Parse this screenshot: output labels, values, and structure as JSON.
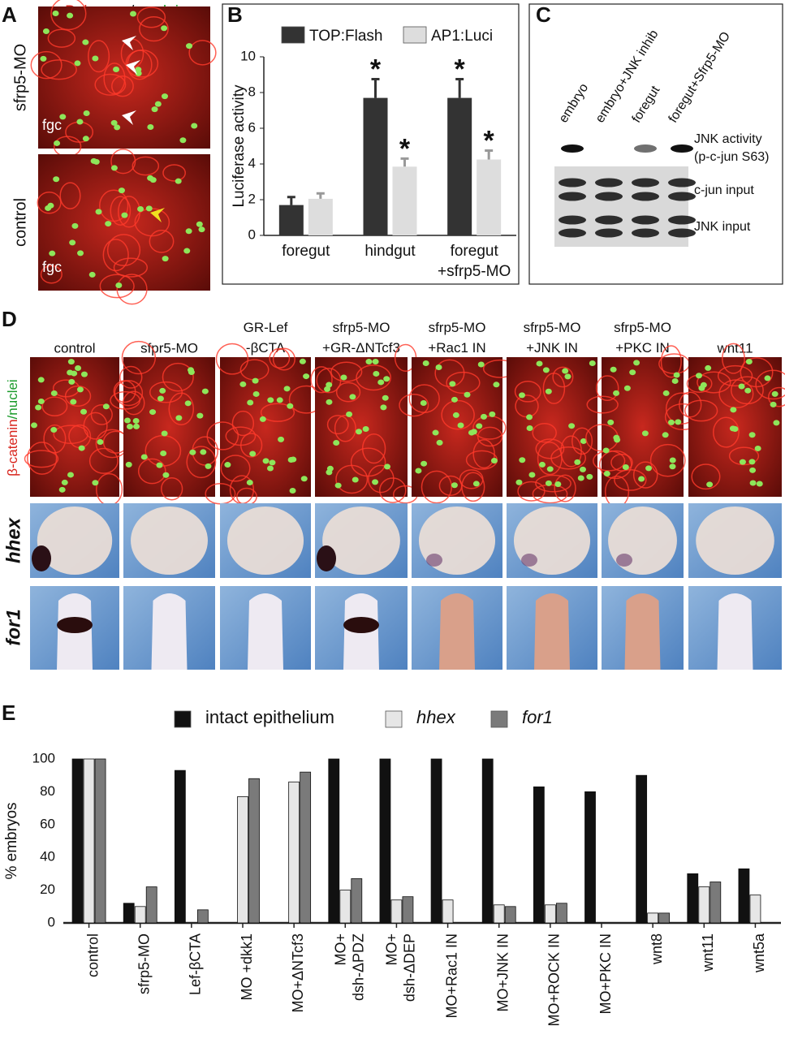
{
  "panel_a": {
    "letter": "A",
    "title": [
      "Dsh-myc",
      "/",
      "nuclei"
    ],
    "images": [
      {
        "label": "sfrp5-MO",
        "tag": "fgc"
      },
      {
        "label": "control",
        "tag": "fgc"
      }
    ]
  },
  "chart_data": [
    {
      "type": "bar",
      "letter": "B",
      "ylabel": "Luciferase activity",
      "categories": [
        "foregut",
        "hindgut",
        "foregut\n+sfrp5-MO"
      ],
      "series": [
        {
          "name": "TOP:Flash",
          "color": "#333333",
          "values": [
            1.7,
            7.7,
            7.7
          ],
          "errors": [
            0.45,
            1.05,
            1.05
          ],
          "marks": [
            null,
            "*",
            "*"
          ]
        },
        {
          "name": "AP1:Luci",
          "color": "#dddddd",
          "values": [
            2.05,
            3.85,
            4.25
          ],
          "errors": [
            0.3,
            0.45,
            0.5
          ],
          "marks": [
            null,
            "*",
            "*"
          ]
        }
      ],
      "ylim": [
        0,
        10
      ],
      "yticks": [
        0,
        2,
        4,
        6,
        8,
        10
      ],
      "legend": "top"
    },
    {
      "type": "bar",
      "letter": "E",
      "ylabel": "% embryos",
      "categories": [
        "control",
        "sfrp5-MO",
        "Lef-βCTA",
        "MO +dkk1",
        "MO+ΔNTcf3",
        "MO+\ndsh-ΔPDZ",
        "MO+\ndsh-ΔDEP",
        "MO+Rac1 IN",
        "MO+JNK IN",
        "MO+ROCK IN",
        "MO+PKC IN",
        "wnt8",
        "wnt11",
        "wnt5a"
      ],
      "series": [
        {
          "name": "intact epithelium",
          "color": "#111111",
          "font_style": "normal",
          "values": [
            100,
            12,
            93,
            null,
            null,
            100,
            100,
            100,
            100,
            83,
            80,
            90,
            30,
            33
          ]
        },
        {
          "name": "hhex",
          "color": "#e6e6e6",
          "font_style": "italic",
          "values": [
            100,
            10,
            null,
            77,
            86,
            20,
            14,
            14,
            11,
            11,
            null,
            6,
            22,
            17
          ]
        },
        {
          "name": "for1",
          "color": "#7a7a7a",
          "font_style": "italic",
          "values": [
            100,
            22,
            8,
            88,
            92,
            27,
            16,
            null,
            10,
            12,
            null,
            6,
            25,
            null
          ]
        }
      ],
      "ylim": [
        0,
        100
      ],
      "yticks": [
        0,
        20,
        40,
        60,
        80,
        100
      ],
      "legend": "top"
    }
  ],
  "panel_c": {
    "letter": "C",
    "lanes": [
      "embryo",
      "embryo+JNK inhib",
      "foregut",
      "foregut+Sfrp5-MO"
    ],
    "rows": [
      "JNK activity\n(p-c-jun S63)",
      "c-jun input",
      "JNK input"
    ]
  },
  "panel_d": {
    "letter": "D",
    "columns": [
      "control",
      "sfpr5-MO",
      "GR-Lef\n-βCTA",
      "sfrp5-MO\n+GR-ΔNTcf3",
      "sfrp5-MO\n+Rac1 IN",
      "sfrp5-MO\n+JNK IN",
      "sfrp5-MO\n+PKC IN",
      "wnt11"
    ],
    "stain": [
      "β-catenin",
      "/nuclei"
    ],
    "genes": [
      "hhex",
      "for1"
    ]
  }
}
